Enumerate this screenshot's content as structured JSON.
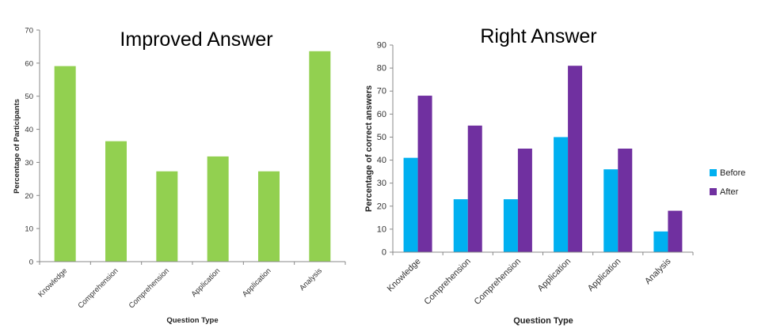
{
  "chart_data": [
    {
      "type": "bar",
      "title": "Improved Answer",
      "xlabel": "Question Type",
      "ylabel": "Percentage of Participants",
      "ylim": [
        0,
        70
      ],
      "yticks": [
        0,
        10,
        20,
        30,
        40,
        50,
        60,
        70
      ],
      "categories": [
        "Knowledge",
        "Comprehension",
        "Comprehension",
        "Application",
        "Application",
        "Analysis"
      ],
      "values": [
        59.1,
        36.4,
        27.3,
        31.8,
        27.3,
        63.6
      ],
      "color": "#92d050",
      "grid": false
    },
    {
      "type": "bar",
      "title": "Right Answer",
      "xlabel": "Question Type",
      "ylabel": "Percentage of correct answers",
      "ylim": [
        0,
        90
      ],
      "yticks": [
        0,
        10,
        20,
        30,
        40,
        50,
        60,
        70,
        80,
        90
      ],
      "categories": [
        "Knowledge",
        "Comprehension",
        "Comprehension",
        "Application",
        "Application",
        "Analysis"
      ],
      "series": [
        {
          "name": "Before",
          "values": [
            41,
            23,
            23,
            50,
            36,
            9
          ],
          "color": "#00b0f0"
        },
        {
          "name": "After",
          "values": [
            68,
            55,
            45,
            81,
            45,
            18
          ],
          "color": "#7030a0"
        }
      ],
      "legend": "right",
      "grid": false
    }
  ]
}
